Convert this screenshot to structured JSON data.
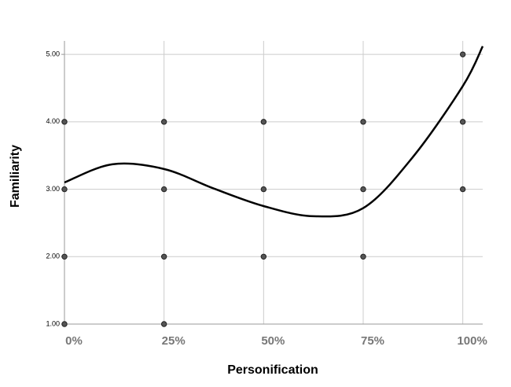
{
  "chart_data": {
    "type": "scatter",
    "x_label": "Personification",
    "y_label": "Familiarity",
    "xlim": [
      0,
      105
    ],
    "ylim": [
      1,
      5.2
    ],
    "xticks": [
      {
        "value": 0,
        "label": "0%"
      },
      {
        "value": 25,
        "label": "25%"
      },
      {
        "value": 50,
        "label": "50%"
      },
      {
        "value": 75,
        "label": "75%"
      },
      {
        "value": 100,
        "label": "100%"
      }
    ],
    "yticks": [
      {
        "value": 1,
        "label": "1.00"
      },
      {
        "value": 2,
        "label": "2.00"
      },
      {
        "value": 3,
        "label": "3.00"
      },
      {
        "value": 4,
        "label": "4.00"
      },
      {
        "value": 5,
        "label": "5.00"
      }
    ],
    "grid": true,
    "series": [
      {
        "color": "#555555",
        "x": [
          0,
          0,
          0,
          0,
          25,
          25,
          25,
          25,
          50,
          50,
          50,
          75,
          75,
          75,
          100,
          100,
          100
        ],
        "values": [
          4,
          3,
          2,
          1,
          4,
          3,
          2,
          1,
          4,
          3,
          2,
          4,
          3,
          2,
          5,
          4,
          3
        ]
      }
    ],
    "fit": {
      "color": "#000000",
      "x": [
        0,
        12,
        25,
        37.5,
        50,
        62.5,
        75,
        87.5,
        100,
        105
      ],
      "values": [
        3.1,
        3.37,
        3.3,
        3.01,
        2.75,
        2.6,
        2.72,
        3.48,
        4.53,
        5.12
      ]
    }
  }
}
